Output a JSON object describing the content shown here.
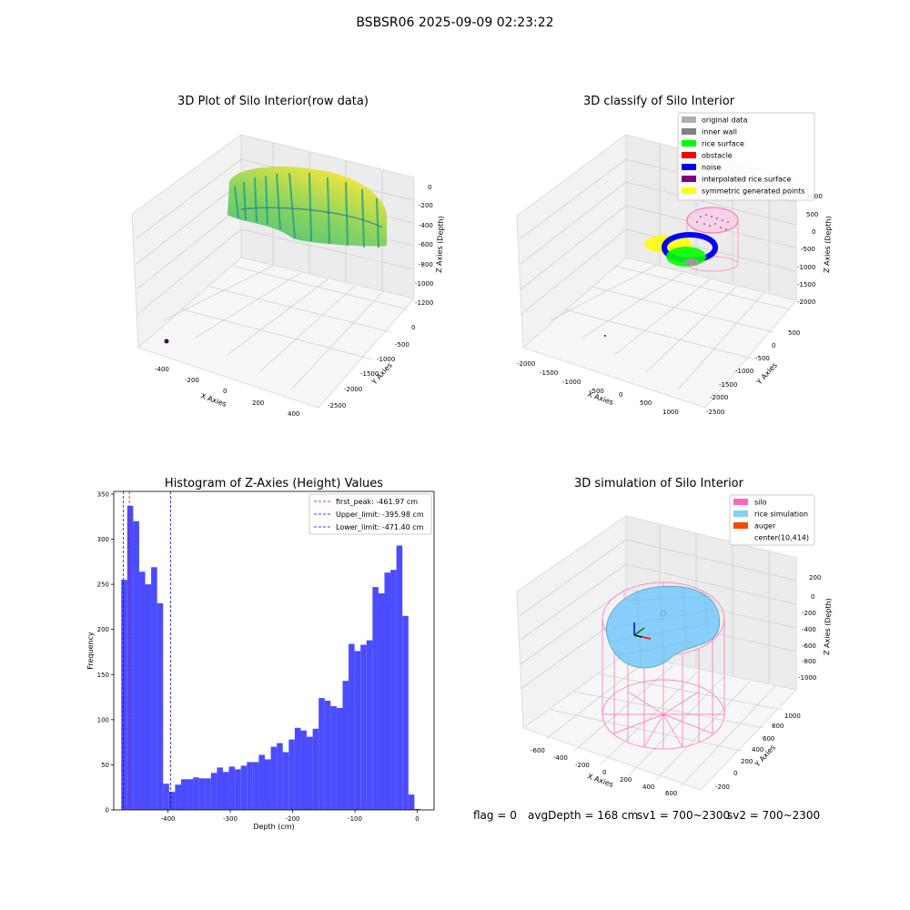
{
  "suptitle": "BSBSR06 2025-09-09 02:23:22",
  "footer": {
    "flag": "flag = 0",
    "avg": "avgDepth = 168 cm",
    "sv1": "sv1 = 700~2300",
    "sv2": "sv2 = 700~2300"
  },
  "colors": {
    "hist_bar": "#4b4bff",
    "first_peak_line": "#ff0000",
    "limit_lines": "#0000ff",
    "silo": "#ff69b4",
    "rice_simulation": "#87cefa",
    "auger": "#ff4500",
    "original_data": "#b0b0b0",
    "inner_wall": "#808080",
    "rice_surface": "#00ff00",
    "obstacle": "#ff0000",
    "noise": "#0000ff",
    "interpolated": "#800080",
    "symmetric": "#ffff00"
  },
  "panels": {
    "raw": {
      "title": "3D Plot of Silo Interior(row data)",
      "xlabel": "X Axies",
      "ylabel": "Y Axies",
      "zlabel": "Z Axies (Depth)",
      "xticks": [
        "-400",
        "-200",
        "0",
        "200",
        "400"
      ],
      "yticks": [
        "0",
        "-500",
        "-1000",
        "-1500",
        "-2000",
        "-2500"
      ],
      "zticks": [
        "0",
        "-200",
        "-400",
        "-600",
        "-800",
        "-1000",
        "-1200"
      ]
    },
    "classify": {
      "title": "3D classify of Silo Interior",
      "xlabel": "X Axies",
      "ylabel": "Y Axies",
      "zlabel": "Z Axies (Depth)",
      "xticks": [
        "-2000",
        "-1500",
        "-1000",
        "-500",
        "0",
        "500",
        "1000"
      ],
      "yticks": [
        "500",
        "0",
        "-500",
        "-1000",
        "-1500",
        "-2000",
        "-2500"
      ],
      "zticks": [
        "1000",
        "500",
        "0",
        "-500",
        "-1000",
        "-1500",
        "-2000"
      ],
      "legend": [
        {
          "label": "original data",
          "color": "#b0b0b0"
        },
        {
          "label": "inner wall",
          "color": "#808080"
        },
        {
          "label": "rice surface",
          "color": "#00ff00"
        },
        {
          "label": "obstacle",
          "color": "#ff0000"
        },
        {
          "label": "noise",
          "color": "#0000ff"
        },
        {
          "label": "interpolated rice surface",
          "color": "#800080"
        },
        {
          "label": "symmetric generated points",
          "color": "#ffff00"
        }
      ]
    },
    "simulation": {
      "title": "3D simulation of Silo Interior",
      "xlabel": "X Axies",
      "ylabel": "Y Axies",
      "zlabel": "Z Axies (Depth)",
      "xticks": [
        "-600",
        "-400",
        "-200",
        "0",
        "200",
        "400",
        "600"
      ],
      "yticks": [
        "1000",
        "800",
        "600",
        "400",
        "200",
        "0",
        "-200"
      ],
      "zticks": [
        "200",
        "0",
        "-200",
        "-400",
        "-600",
        "-800",
        "-1000"
      ],
      "legend": [
        {
          "label": "silo",
          "color": "#ff69b4"
        },
        {
          "label": "rice simulation",
          "color": "#87cefa"
        },
        {
          "label": "auger",
          "color": "#ff4500"
        },
        {
          "label": "center(10,414)",
          "color": ""
        }
      ]
    }
  },
  "chart_data": {
    "type": "bar",
    "title": "Histogram of Z-Axies (Height) Values",
    "xlabel": "Depth (cm)",
    "ylabel": "Frequency",
    "xlim": [
      -487,
      27
    ],
    "ylim": [
      0,
      353
    ],
    "xticks": [
      -400,
      -300,
      -200,
      -100,
      0
    ],
    "yticks": [
      0,
      50,
      100,
      150,
      200,
      250,
      300,
      350
    ],
    "bin_width": 9.6,
    "bin_start": -475,
    "values": [
      255,
      337,
      320,
      264,
      250,
      269,
      229,
      29,
      20,
      28,
      34,
      34,
      36,
      35,
      35,
      41,
      47,
      42,
      48,
      45,
      49,
      53,
      53,
      61,
      56,
      70,
      74,
      64,
      78,
      91,
      88,
      81,
      90,
      124,
      121,
      115,
      113,
      143,
      184,
      176,
      183,
      188,
      247,
      240,
      263,
      266,
      293,
      215,
      17,
      1
    ],
    "vlines": [
      {
        "label": "first_peak: -461.97 cm",
        "x": -461.97,
        "color": "#ff0000"
      },
      {
        "label": "Upper_limit: -395.98 cm",
        "x": -395.98,
        "color": "#0000ff"
      },
      {
        "label": "Lower_limit: -471.40 cm",
        "x": -471.4,
        "color": "#0000ff"
      }
    ]
  }
}
